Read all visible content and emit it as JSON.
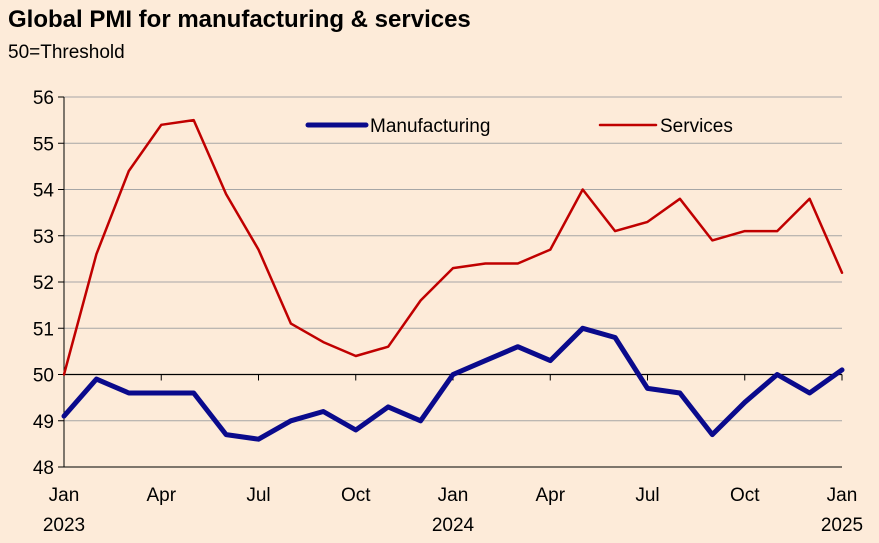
{
  "chart_data": {
    "type": "line",
    "title": "Global PMI for manufacturing & services",
    "subtitle": "50=Threshold",
    "xlabel": "",
    "ylabel": "",
    "ylim": [
      48,
      56
    ],
    "y_ticks": [
      48,
      49,
      50,
      51,
      52,
      53,
      54,
      55,
      56
    ],
    "x_tick_labels": [
      {
        "month": "Jan",
        "year": "2023",
        "index": 0
      },
      {
        "month": "Apr",
        "year": "",
        "index": 3
      },
      {
        "month": "Jul",
        "year": "",
        "index": 6
      },
      {
        "month": "Oct",
        "year": "",
        "index": 9
      },
      {
        "month": "Jan",
        "year": "2024",
        "index": 12
      },
      {
        "month": "Apr",
        "year": "",
        "index": 15
      },
      {
        "month": "Jul",
        "year": "",
        "index": 18
      },
      {
        "month": "Oct",
        "year": "",
        "index": 21
      },
      {
        "month": "Jan",
        "year": "2025",
        "index": 24
      }
    ],
    "x": [
      "2023-01",
      "2023-02",
      "2023-03",
      "2023-04",
      "2023-05",
      "2023-06",
      "2023-07",
      "2023-08",
      "2023-09",
      "2023-10",
      "2023-11",
      "2023-12",
      "2024-01",
      "2024-02",
      "2024-03",
      "2024-04",
      "2024-05",
      "2024-06",
      "2024-07",
      "2024-08",
      "2024-09",
      "2024-10",
      "2024-11",
      "2024-12",
      "2025-01"
    ],
    "threshold": 50,
    "grid": true,
    "legend_position": "top",
    "series": [
      {
        "name": "Manufacturing",
        "color": "#0a0a8c",
        "values": [
          49.1,
          49.9,
          49.6,
          49.6,
          49.6,
          48.7,
          48.6,
          49.0,
          49.2,
          48.8,
          49.3,
          49.0,
          50.0,
          50.3,
          50.6,
          50.3,
          51.0,
          50.8,
          49.7,
          49.6,
          48.7,
          49.4,
          50.0,
          49.6,
          50.1
        ]
      },
      {
        "name": "Services",
        "color": "#c00000",
        "values": [
          50.0,
          52.6,
          54.4,
          55.4,
          55.5,
          53.9,
          52.7,
          51.1,
          50.7,
          50.4,
          50.6,
          51.6,
          52.3,
          52.4,
          52.4,
          52.7,
          54.0,
          53.1,
          53.3,
          53.8,
          52.9,
          53.1,
          53.1,
          53.8,
          52.2
        ]
      }
    ]
  }
}
